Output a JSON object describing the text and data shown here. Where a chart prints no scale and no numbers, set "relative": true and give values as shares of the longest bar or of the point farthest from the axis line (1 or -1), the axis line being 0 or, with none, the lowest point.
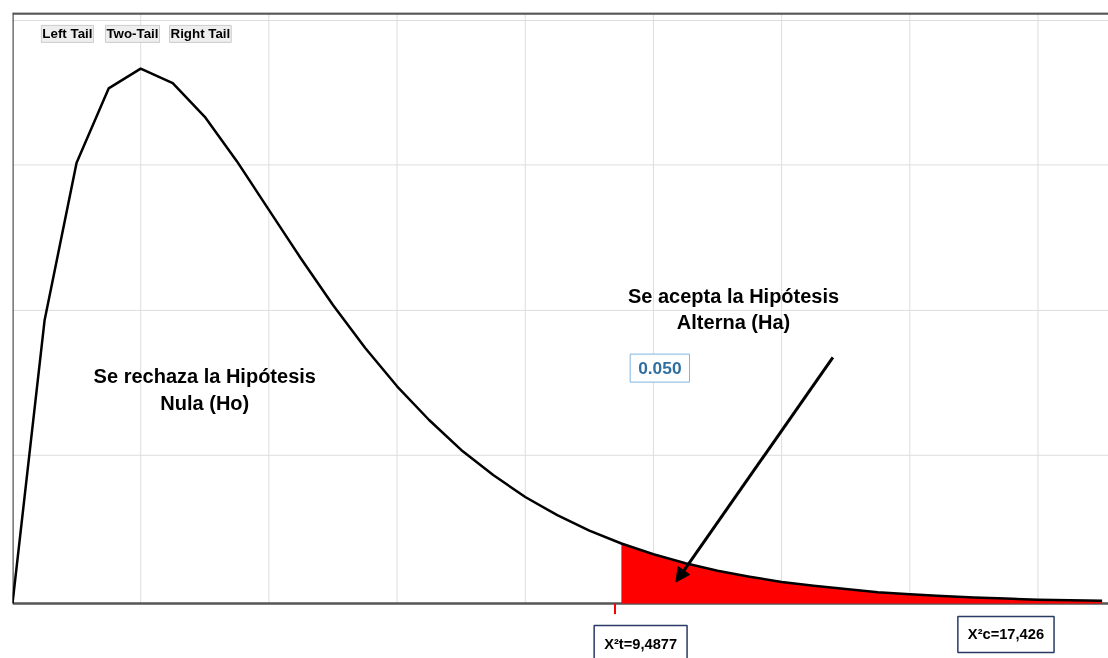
{
  "chart_data": {
    "type": "line",
    "relative": true,
    "grid": true,
    "categories": [
      null,
      null,
      null,
      null,
      null,
      null,
      null,
      null,
      null,
      null,
      null,
      null,
      null,
      null,
      null,
      null,
      null,
      null,
      null,
      null,
      null,
      null,
      null,
      null,
      null,
      null,
      null,
      null,
      null,
      null,
      null,
      null,
      null,
      null,
      null
    ],
    "series": [
      {
        "color": "#000000",
        "values": [
          0,
          0.529,
          0.824,
          0.963,
          1,
          0.973,
          0.91,
          0.827,
          0.736,
          0.645,
          0.558,
          0.478,
          0.406,
          0.343,
          0.287,
          0.24,
          0.199,
          0.165,
          0.136,
          0.112,
          0.092,
          0.075,
          0.061,
          0.05,
          0.04,
          0.033,
          0.027,
          0.021,
          0.017,
          0.014,
          0.011,
          0.009,
          0.007,
          0.006,
          0.005
        ]
      },
      {
        "type": "area",
        "color": "#ff0000",
        "values": [
          null,
          null,
          null,
          null,
          null,
          null,
          null,
          null,
          null,
          null,
          null,
          null,
          null,
          null,
          null,
          null,
          null,
          null,
          null,
          0.112,
          0.092,
          0.075,
          0.061,
          0.05,
          0.04,
          0.033,
          0.027,
          0.021,
          0.017,
          0.014,
          0.011,
          0.009,
          0.007,
          0.006,
          0.005
        ]
      }
    ],
    "annotations": [
      "Left Tail",
      "Two-Tail",
      "Right Tail",
      "Se rechaza la Hipótesis\nNula (Ho)",
      "Se acepta la Hipótesis\nAlterna (Ha)",
      "0.050",
      "X²t=9,4877",
      "X²c=17,426"
    ]
  }
}
